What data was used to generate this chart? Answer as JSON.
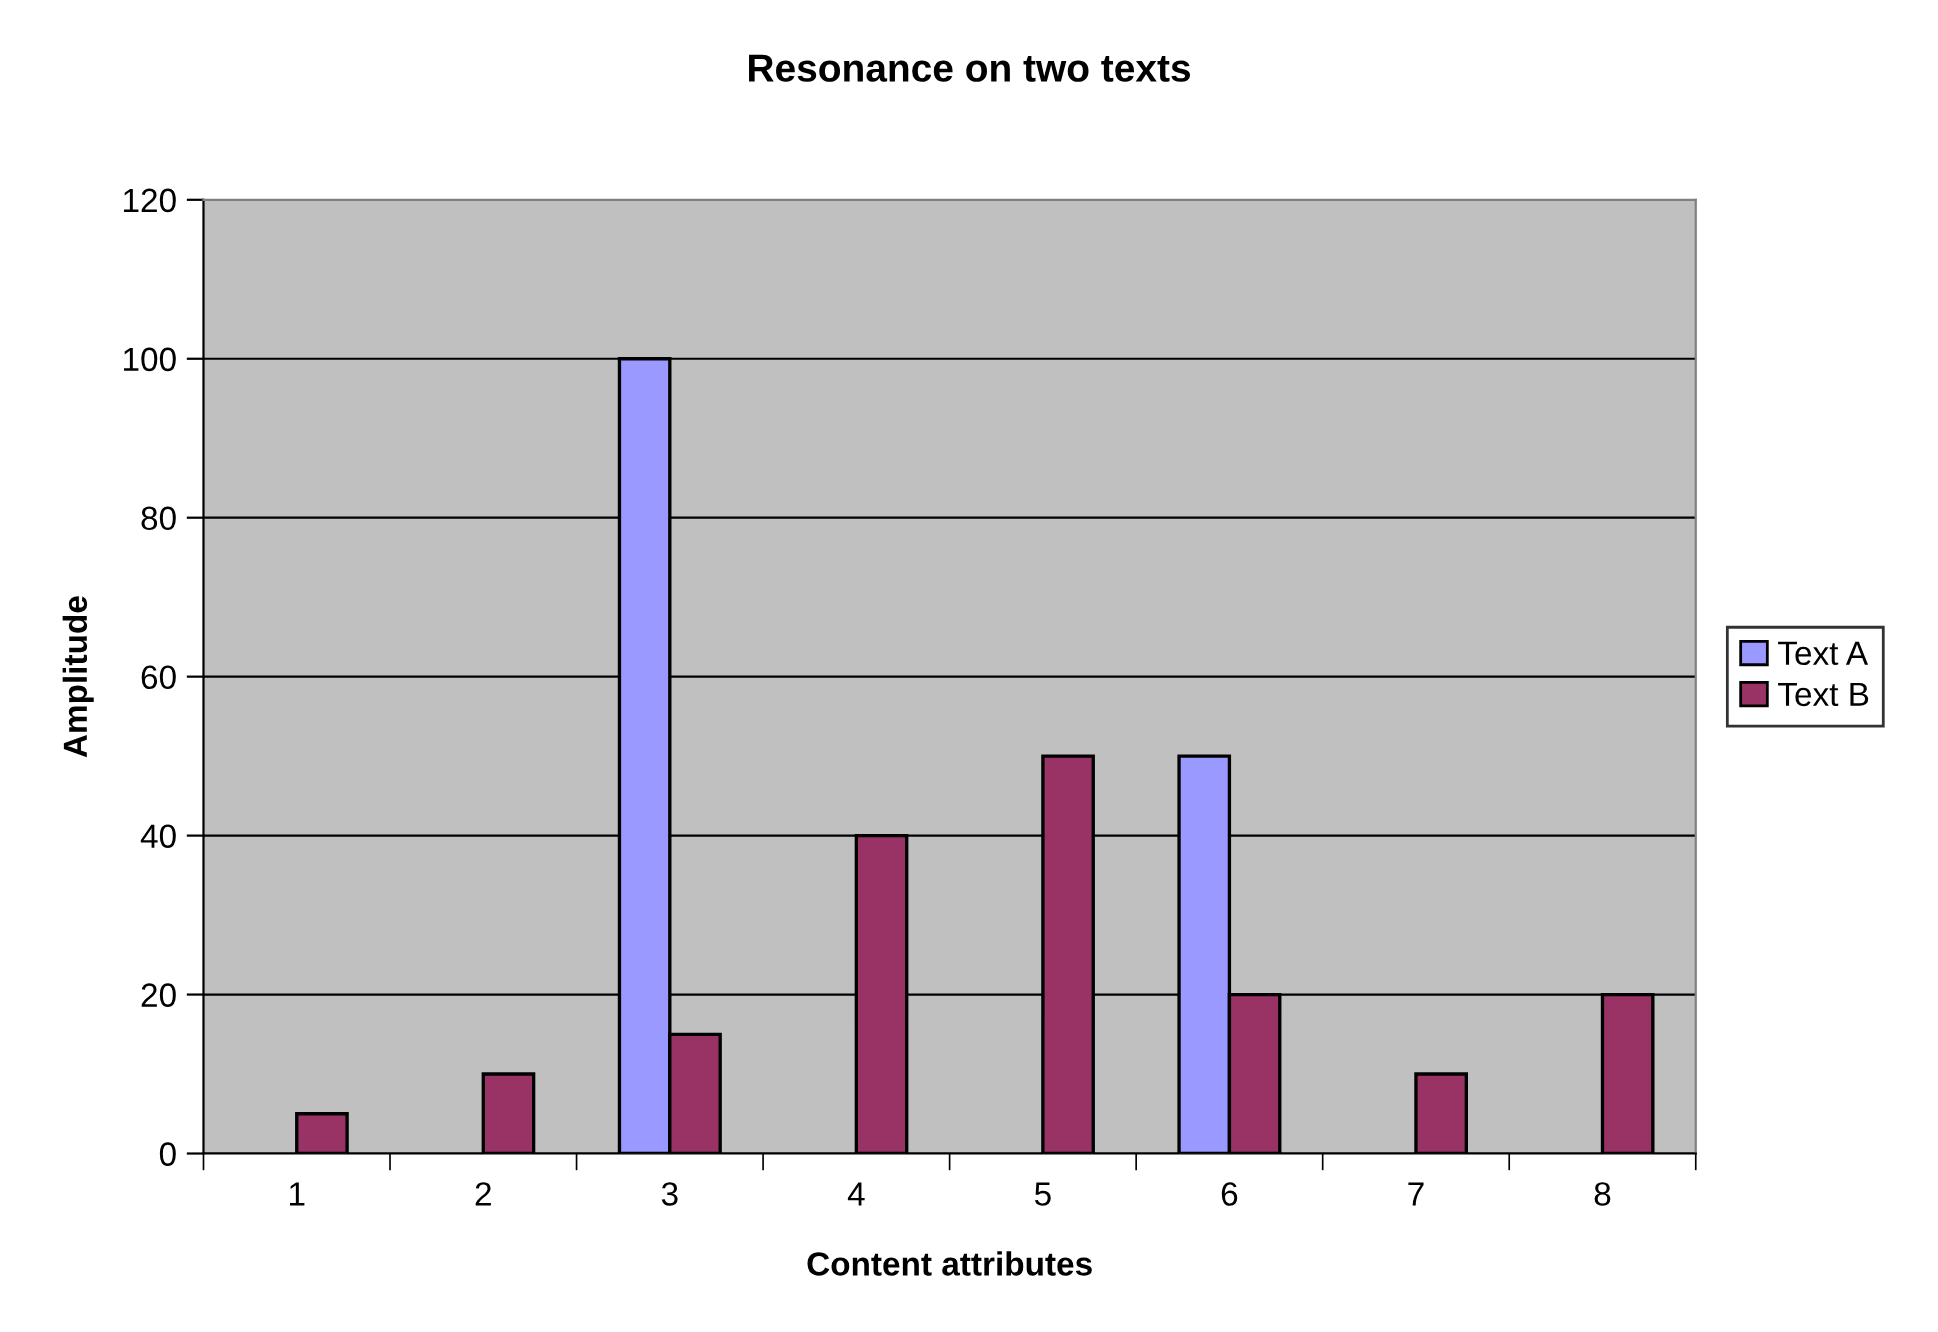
{
  "chart_data": {
    "type": "bar",
    "title": "Resonance on two texts",
    "xlabel": "Content attributes",
    "ylabel": "Amplitude",
    "categories": [
      "1",
      "2",
      "3",
      "4",
      "5",
      "6",
      "7",
      "8"
    ],
    "series": [
      {
        "name": "Text A",
        "color": "#9999ff",
        "values": [
          null,
          null,
          100,
          null,
          null,
          50,
          null,
          null
        ]
      },
      {
        "name": "Text B",
        "color": "#993366",
        "values": [
          5,
          10,
          15,
          40,
          50,
          20,
          10,
          20
        ]
      }
    ],
    "ylim": [
      0,
      120
    ],
    "yticks": [
      0,
      20,
      40,
      60,
      80,
      100,
      120
    ],
    "grid": "y",
    "legend": "right"
  }
}
